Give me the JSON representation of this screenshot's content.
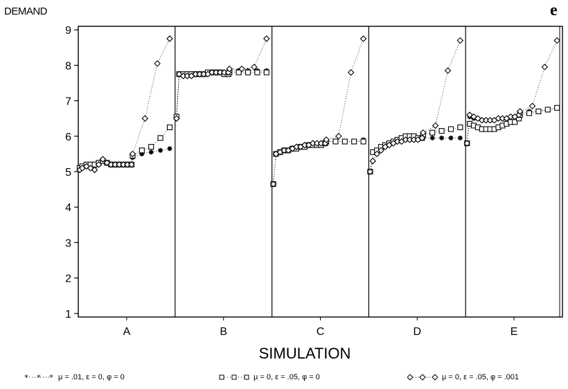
{
  "panel_letter": "e",
  "chart_data": {
    "type": "scatter",
    "title": "",
    "ylabel": "DEMAND",
    "xlabel": "SIMULATION",
    "ylim": [
      0.9,
      9.1
    ],
    "yticks": [
      "1",
      "2",
      "3",
      "4",
      "5",
      "6",
      "7",
      "8",
      "9"
    ],
    "panels": [
      "A",
      "B",
      "C",
      "D",
      "E"
    ],
    "points_per_panel": 36,
    "grid": false,
    "legend_position": "bottom",
    "series": [
      {
        "name": "μ = .01, ε = 0, φ = 0",
        "marker": "star",
        "values": {
          "A": [
            5.05,
            5.1,
            5.15,
            5.1,
            5.05,
            5.2,
            5.3,
            5.25,
            5.2,
            5.2,
            5.2,
            5.2,
            5.2,
            5.2,
            5.4,
            5.5,
            5.55,
            5.6,
            5.65
          ],
          "B": [
            6.5,
            7.75,
            7.7,
            7.7,
            7.7,
            7.75,
            7.75,
            7.75,
            7.75,
            7.8,
            7.8,
            7.8,
            7.8,
            7.8,
            7.85,
            7.85,
            7.85,
            7.85,
            7.85
          ],
          "C": [
            4.65,
            5.5,
            5.55,
            5.6,
            5.6,
            5.65,
            5.7,
            5.7,
            5.75,
            5.75,
            5.8,
            5.8,
            5.8,
            5.8,
            5.85,
            5.85,
            5.85,
            5.85,
            5.9
          ],
          "D": [
            5.0,
            5.3,
            5.5,
            5.6,
            5.7,
            5.75,
            5.8,
            5.85,
            5.85,
            5.9,
            5.9,
            5.9,
            5.9,
            5.95,
            5.95,
            5.95,
            5.95,
            5.95,
            5.95
          ],
          "E": [
            5.8,
            6.55,
            6.5,
            6.5,
            6.45,
            6.45,
            6.45,
            6.45,
            6.5,
            6.5,
            6.5,
            6.55,
            6.55,
            6.6,
            6.65,
            6.7,
            6.7,
            6.75,
            6.8
          ]
        }
      },
      {
        "name": "μ = 0, ε = .05, φ = 0",
        "marker": "square",
        "values": {
          "A": [
            5.1,
            5.15,
            5.2,
            5.2,
            5.2,
            5.25,
            5.3,
            5.25,
            5.2,
            5.2,
            5.2,
            5.2,
            5.2,
            5.2,
            5.45,
            5.6,
            5.7,
            5.95,
            6.25
          ],
          "B": [
            6.55,
            7.75,
            7.75,
            7.75,
            7.75,
            7.75,
            7.75,
            7.75,
            7.8,
            7.8,
            7.8,
            7.8,
            7.75,
            7.75,
            7.8,
            7.8,
            7.8,
            7.8,
            7.8
          ],
          "C": [
            4.65,
            5.5,
            5.55,
            5.6,
            5.6,
            5.65,
            5.65,
            5.7,
            5.7,
            5.75,
            5.75,
            5.75,
            5.75,
            5.8,
            5.85,
            5.85,
            5.85,
            5.85,
            5.85
          ],
          "D": [
            5.0,
            5.55,
            5.6,
            5.7,
            5.75,
            5.8,
            5.85,
            5.9,
            5.95,
            6.0,
            6.0,
            6.0,
            5.95,
            5.95,
            6.05,
            6.1,
            6.15,
            6.2,
            6.25
          ],
          "E": [
            5.8,
            6.35,
            6.3,
            6.25,
            6.2,
            6.2,
            6.2,
            6.2,
            6.25,
            6.3,
            6.35,
            6.4,
            6.4,
            6.5,
            6.6,
            6.65,
            6.7,
            6.75,
            6.8
          ]
        }
      },
      {
        "name": "μ = 0, ε = .05, φ = .001",
        "marker": "diamond",
        "values": {
          "A": [
            5.05,
            5.1,
            5.15,
            5.1,
            5.05,
            5.2,
            5.35,
            5.25,
            5.2,
            5.2,
            5.2,
            5.2,
            5.2,
            5.2,
            5.5,
            6.5,
            8.05,
            8.75
          ],
          "B": [
            6.5,
            7.75,
            7.7,
            7.7,
            7.7,
            7.75,
            7.75,
            7.75,
            7.75,
            7.8,
            7.8,
            7.8,
            7.8,
            7.8,
            7.9,
            7.9,
            7.95,
            8.75
          ],
          "C": [
            4.65,
            5.5,
            5.55,
            5.6,
            5.6,
            5.65,
            5.7,
            5.7,
            5.75,
            5.75,
            5.8,
            5.8,
            5.8,
            5.8,
            5.9,
            6.0,
            7.8,
            8.75
          ],
          "D": [
            5.0,
            5.3,
            5.5,
            5.6,
            5.7,
            5.75,
            5.8,
            5.85,
            5.85,
            5.9,
            5.9,
            5.9,
            5.9,
            5.95,
            6.1,
            6.3,
            7.85,
            8.7
          ],
          "E": [
            5.8,
            6.6,
            6.55,
            6.5,
            6.45,
            6.45,
            6.45,
            6.45,
            6.5,
            6.5,
            6.5,
            6.55,
            6.55,
            6.6,
            6.7,
            6.85,
            7.95,
            8.7
          ]
        }
      }
    ]
  }
}
